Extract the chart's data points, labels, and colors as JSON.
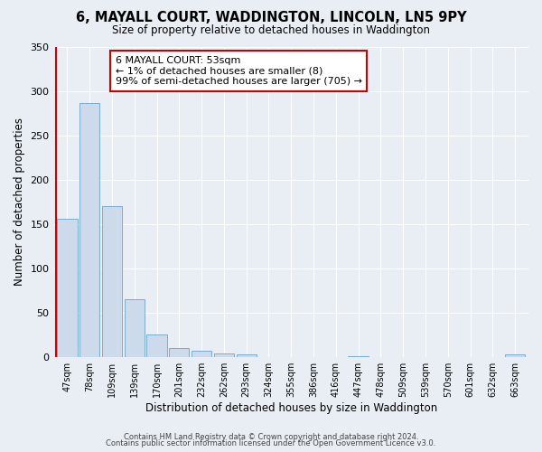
{
  "title": "6, MAYALL COURT, WADDINGTON, LINCOLN, LN5 9PY",
  "subtitle": "Size of property relative to detached houses in Waddington",
  "xlabel": "Distribution of detached houses by size in Waddington",
  "ylabel": "Number of detached properties",
  "bar_labels": [
    "47sqm",
    "78sqm",
    "109sqm",
    "139sqm",
    "170sqm",
    "201sqm",
    "232sqm",
    "262sqm",
    "293sqm",
    "324sqm",
    "355sqm",
    "386sqm",
    "416sqm",
    "447sqm",
    "478sqm",
    "509sqm",
    "539sqm",
    "570sqm",
    "601sqm",
    "632sqm",
    "663sqm"
  ],
  "bar_heights": [
    156,
    286,
    170,
    65,
    25,
    10,
    7,
    4,
    3,
    0,
    0,
    0,
    0,
    1,
    0,
    0,
    0,
    0,
    0,
    0,
    3
  ],
  "bar_color": "#ccdaeb",
  "bar_edge_color": "#7aadd4",
  "annotation_title": "6 MAYALL COURT: 53sqm",
  "annotation_line1": "← 1% of detached houses are smaller (8)",
  "annotation_line2": "99% of semi-detached houses are larger (705) →",
  "annotation_box_color": "#ffffff",
  "annotation_box_edge": "#cc0000",
  "ylim": [
    0,
    350
  ],
  "yticks": [
    0,
    50,
    100,
    150,
    200,
    250,
    300,
    350
  ],
  "background_color": "#e8eef4",
  "grid_color": "#ffffff",
  "footer1": "Contains HM Land Registry data © Crown copyright and database right 2024.",
  "footer2": "Contains public sector information licensed under the Open Government Licence v3.0."
}
